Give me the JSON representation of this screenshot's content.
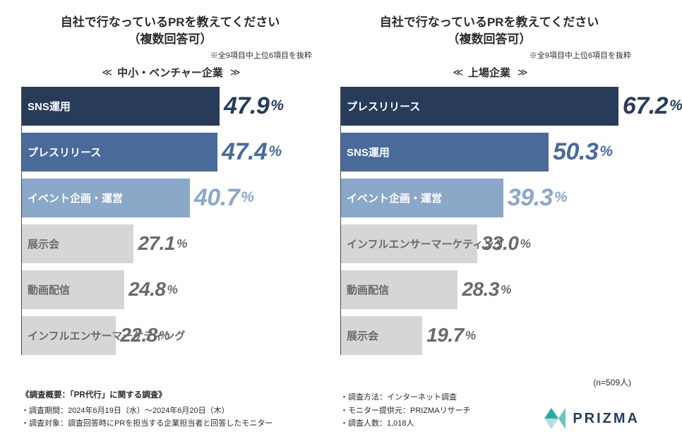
{
  "question_line1": "自社で行なっているPRを教えてください",
  "question_line2": "（複数回答可）",
  "top_note": "※全9項目中上位6項目を抜粋",
  "n_label": "(n=509人)",
  "max_value": 72,
  "color_scheme": {
    "rank1_bar": "#283c5a",
    "rank1_text": "#ffffff",
    "rank1_value": "#283c5a",
    "rank2_bar": "#4a6a9a",
    "rank2_text": "#ffffff",
    "rank2_value": "#4a6a9a",
    "rank3_bar": "#8ba8c8",
    "rank3_text": "#ffffff",
    "rank3_value": "#8ba8c8",
    "other_bar": "#d6d6d6",
    "other_text": "#6a6a6a",
    "other_value": "#6a6a6a",
    "value_fontsize_top": 34,
    "value_fontsize_other": 28
  },
  "panels": [
    {
      "subtitle": "中小・ベンチャー企業",
      "bars": [
        {
          "label": "SNS運用",
          "value": "47.9",
          "pct": 47.9,
          "rank": 1
        },
        {
          "label": "プレスリリース",
          "value": "47.4",
          "pct": 47.4,
          "rank": 2
        },
        {
          "label": "イベント企画・運営",
          "value": "40.7",
          "pct": 40.7,
          "rank": 3
        },
        {
          "label": "展示会",
          "value": "27.1",
          "pct": 27.1,
          "rank": 4
        },
        {
          "label": "動画配信",
          "value": "24.8",
          "pct": 24.8,
          "rank": 4
        },
        {
          "label": "インフルエンサーマーケティング",
          "value": "22.8",
          "pct": 22.8,
          "rank": 4
        }
      ]
    },
    {
      "subtitle": "上場企業",
      "bars": [
        {
          "label": "プレスリリース",
          "value": "67.2",
          "pct": 67.2,
          "rank": 1
        },
        {
          "label": "SNS運用",
          "value": "50.3",
          "pct": 50.3,
          "rank": 2
        },
        {
          "label": "イベント企画・運営",
          "value": "39.3",
          "pct": 39.3,
          "rank": 3
        },
        {
          "label": "インフルエンサーマーケティング",
          "value": "33.0",
          "pct": 33.0,
          "rank": 4
        },
        {
          "label": "動画配信",
          "value": "28.3",
          "pct": 28.3,
          "rank": 4
        },
        {
          "label": "展示会",
          "value": "19.7",
          "pct": 19.7,
          "rank": 4
        }
      ]
    }
  ],
  "footer": {
    "left_title": "《調査概要：「PR代行」に関する調査》",
    "left_lines": [
      "調査期間：2024年6月19日（水）〜2024年6月20日（木）",
      "調査対象：調査回答時にPRを担当する企業担当者と回答したモニター"
    ],
    "right_lines": [
      "調査方法：インターネット調査",
      "モニター提供元：PRIZMAリサーチ",
      "調査人数：1,018人"
    ]
  },
  "logo_text": "PRIZMA",
  "logo_colors": {
    "tri1": "#2aa9a0",
    "tri2": "#6ac3bd",
    "tri3": "#b2e0dc"
  }
}
